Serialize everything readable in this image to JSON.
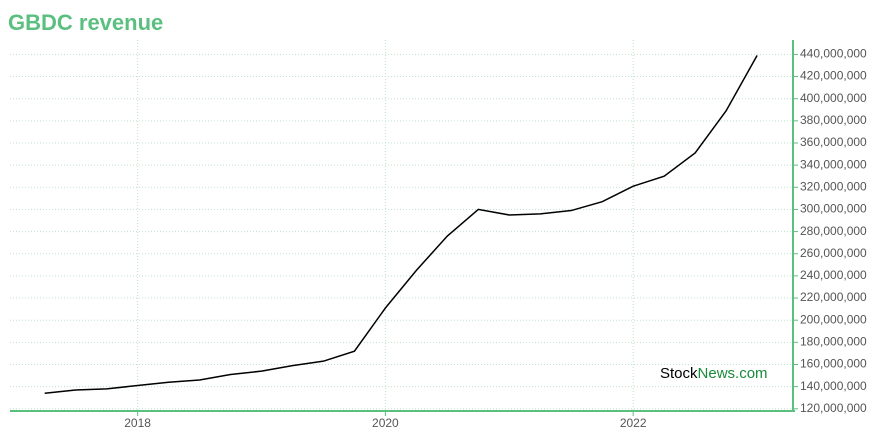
{
  "chart_data": {
    "type": "line",
    "title": "GBDC revenue",
    "x": [
      2017.25,
      2017.5,
      2017.75,
      2018.0,
      2018.25,
      2018.5,
      2018.75,
      2019.0,
      2019.25,
      2019.5,
      2019.75,
      2020.0,
      2020.25,
      2020.5,
      2020.75,
      2021.0,
      2021.25,
      2021.5,
      2021.75,
      2022.0,
      2022.25,
      2022.5,
      2022.75,
      2023.0
    ],
    "values": [
      134000000,
      137000000,
      138000000,
      141000000,
      144000000,
      146000000,
      151000000,
      154000000,
      159000000,
      163000000,
      172000000,
      211000000,
      245000000,
      276000000,
      300000000,
      295000000,
      296000000,
      299000000,
      307000000,
      321000000,
      330000000,
      351000000,
      389000000,
      439000000
    ],
    "color": "#000000",
    "axis_color": "#5bbf80",
    "grid": true,
    "xlim": [
      2016.97,
      2023.29
    ],
    "xticks": [
      2018,
      2020,
      2022
    ],
    "ylim": [
      118000000,
      453000000
    ],
    "yticks": [
      {
        "value": 120000000,
        "label": "120,000,000"
      },
      {
        "value": 140000000,
        "label": "140,000,000"
      },
      {
        "value": 160000000,
        "label": "160,000,000"
      },
      {
        "value": 180000000,
        "label": "180,000,000"
      },
      {
        "value": 200000000,
        "label": "200,000,000"
      },
      {
        "value": 220000000,
        "label": "220,000,000"
      },
      {
        "value": 240000000,
        "label": "240,000,000"
      },
      {
        "value": 260000000,
        "label": "260,000,000"
      },
      {
        "value": 280000000,
        "label": "280,000,000"
      },
      {
        "value": 300000000,
        "label": "300,000,000"
      },
      {
        "value": 320000000,
        "label": "320,000,000"
      },
      {
        "value": 340000000,
        "label": "340,000,000"
      },
      {
        "value": 360000000,
        "label": "360,000,000"
      },
      {
        "value": 380000000,
        "label": "380,000,000"
      },
      {
        "value": 400000000,
        "label": "400,000,000"
      },
      {
        "value": 420000000,
        "label": "420,000,000"
      },
      {
        "value": 440000000,
        "label": "440,000,000"
      }
    ],
    "watermark": [
      "Stock",
      "News.com"
    ]
  }
}
